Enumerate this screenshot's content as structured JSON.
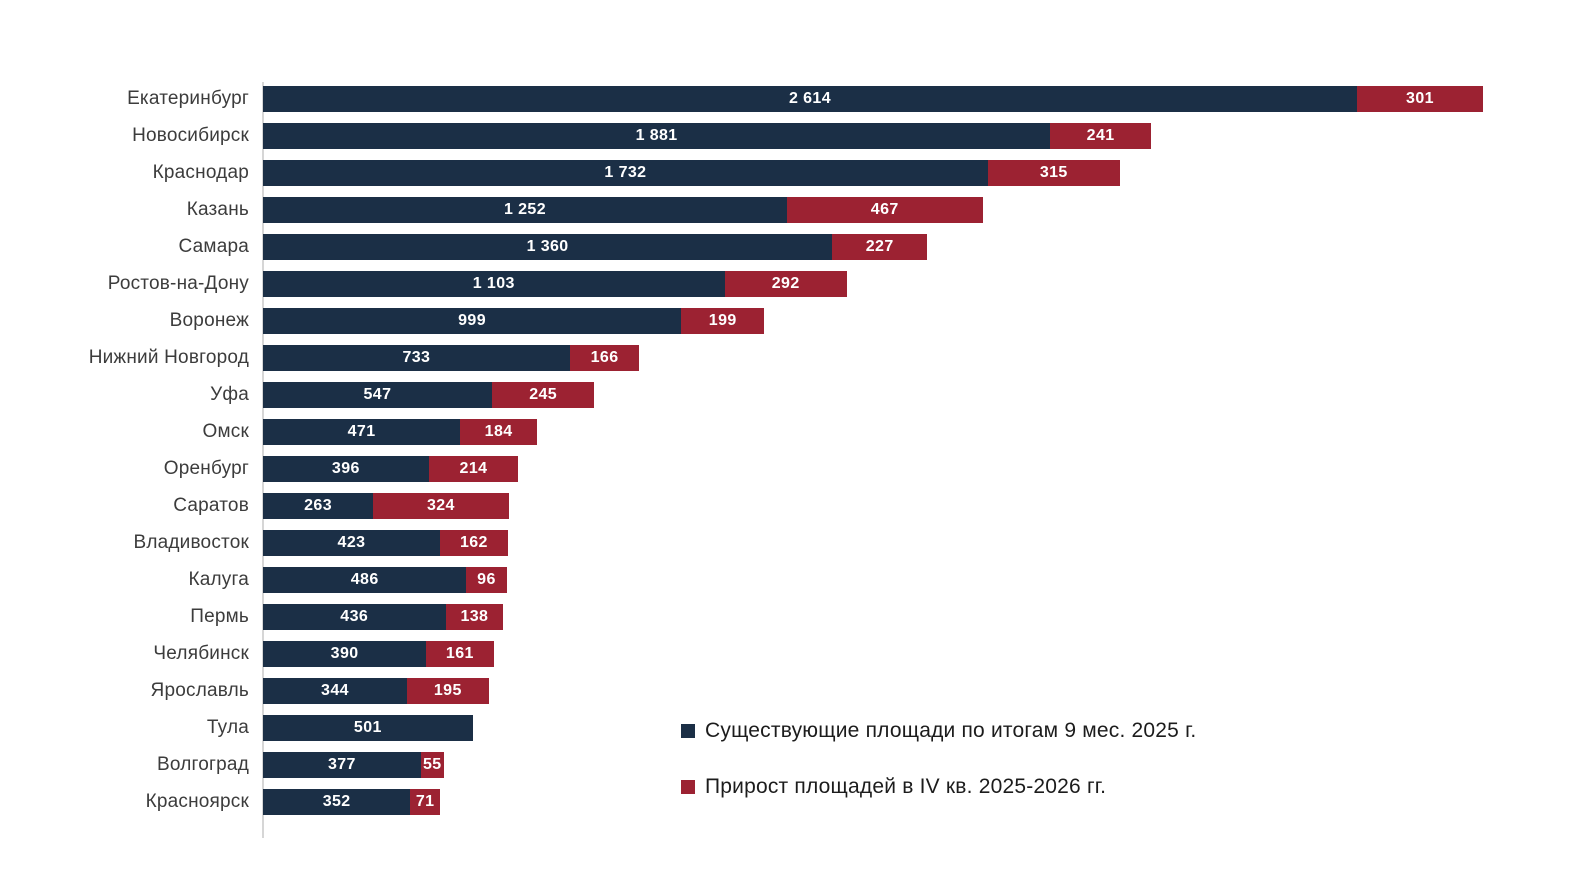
{
  "chart": {
    "background_color": "#ffffff",
    "axis_line_color": "#d6d6d6",
    "category_label_color": "#3c3c3c",
    "value_label_color": "#ffffff",
    "legend_text_color": "#1c1c1c"
  },
  "chart_data": {
    "type": "bar",
    "orientation": "horizontal",
    "stacked": true,
    "title": "",
    "xlabel": "",
    "ylabel": "",
    "xlim": [
      0,
      2915
    ],
    "grid": false,
    "legend_position": "bottom-right",
    "value_labels": "inside-segments-white-bold",
    "categories": [
      "Екатеринбург",
      "Новосибирск",
      "Краснодар",
      "Казань",
      "Самара",
      "Ростов-на-Дону",
      "Воронеж",
      "Нижний Новгород",
      "Уфа",
      "Омск",
      "Оренбург",
      "Саратов",
      "Владивосток",
      "Калуга",
      "Пермь",
      "Челябинск",
      "Ярославль",
      "Тула",
      "Волгоград",
      "Красноярск"
    ],
    "series": [
      {
        "name": "Существующие площади по итогам 9 мес. 2025 г.",
        "color": "#1b2f46",
        "values": [
          2614,
          1881,
          1732,
          1252,
          1360,
          1103,
          999,
          733,
          547,
          471,
          396,
          263,
          423,
          486,
          436,
          390,
          344,
          501,
          377,
          352
        ],
        "labels": [
          "2 614",
          "1 881",
          "1 732",
          "1 252",
          "1 360",
          "1 103",
          "999",
          "733",
          "547",
          "471",
          "396",
          "263",
          "423",
          "486",
          "436",
          "390",
          "344",
          "501",
          "377",
          "352"
        ]
      },
      {
        "name": "Прирост площадей в IV кв. 2025-2026 гг.",
        "color": "#9c2232",
        "values": [
          301,
          241,
          315,
          467,
          227,
          292,
          199,
          166,
          245,
          184,
          214,
          324,
          162,
          96,
          138,
          161,
          195,
          0,
          55,
          71
        ],
        "labels": [
          "301",
          "241",
          "315",
          "467",
          "227",
          "292",
          "199",
          "166",
          "245",
          "184",
          "214",
          "324",
          "162",
          "96",
          "138",
          "161",
          "195",
          "",
          "55",
          "71"
        ]
      }
    ]
  }
}
